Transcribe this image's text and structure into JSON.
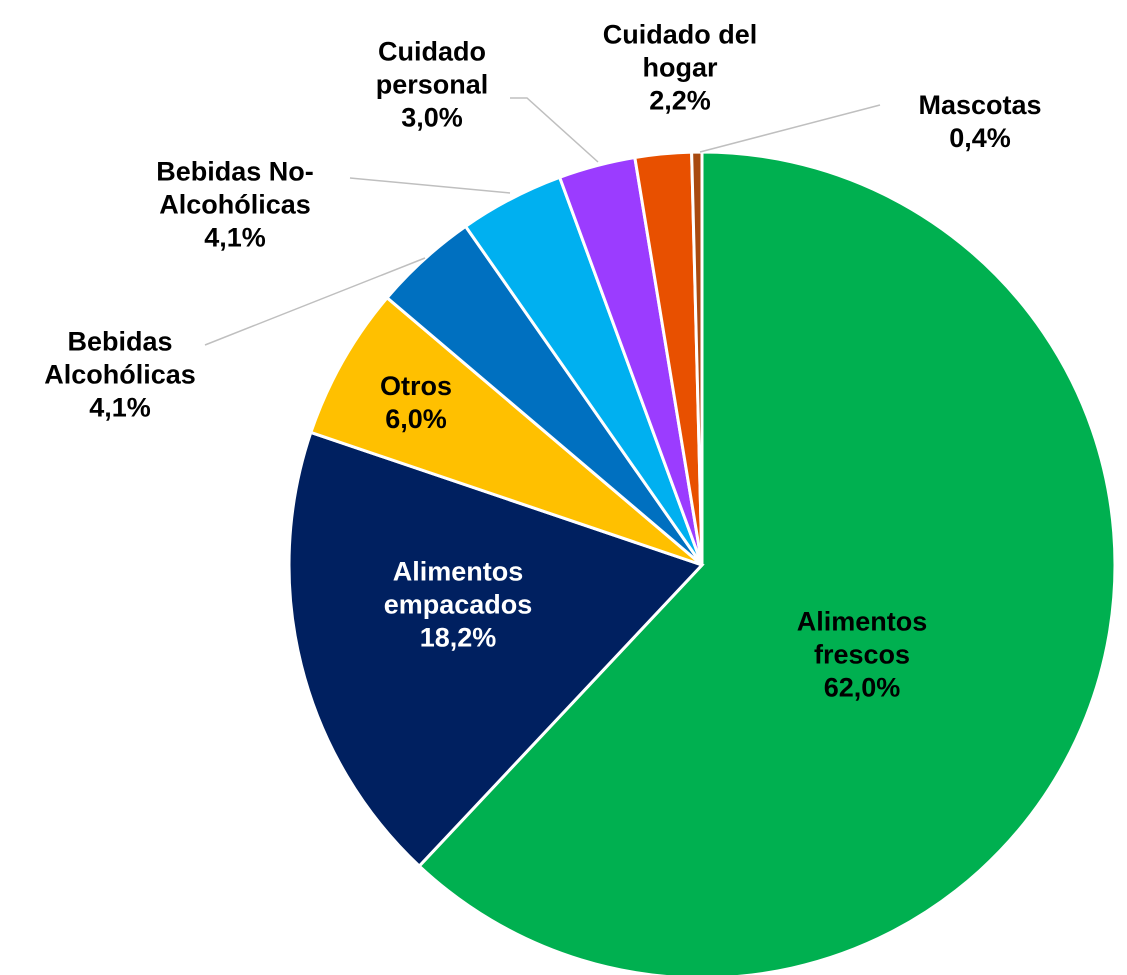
{
  "chart_data": {
    "type": "pie",
    "categories": [
      "Alimentos frescos",
      "Alimentos empacados",
      "Otros",
      "Bebidas Alcohólicas",
      "Bebidas No-Alcohólicas",
      "Cuidado personal",
      "Cuidado del hogar",
      "Mascotas"
    ],
    "values": [
      62.0,
      18.2,
      6.0,
      4.1,
      4.1,
      3.0,
      2.2,
      0.4
    ],
    "value_labels": [
      "62,0%",
      "18,2%",
      "6,0%",
      "4,1%",
      "4,1%",
      "3,0%",
      "2,2%",
      "0,4%"
    ],
    "colors": [
      "#00b050",
      "#002060",
      "#ffc000",
      "#0070c0",
      "#00b0f0",
      "#9b3cff",
      "#e85000",
      "#a84a10"
    ]
  }
}
